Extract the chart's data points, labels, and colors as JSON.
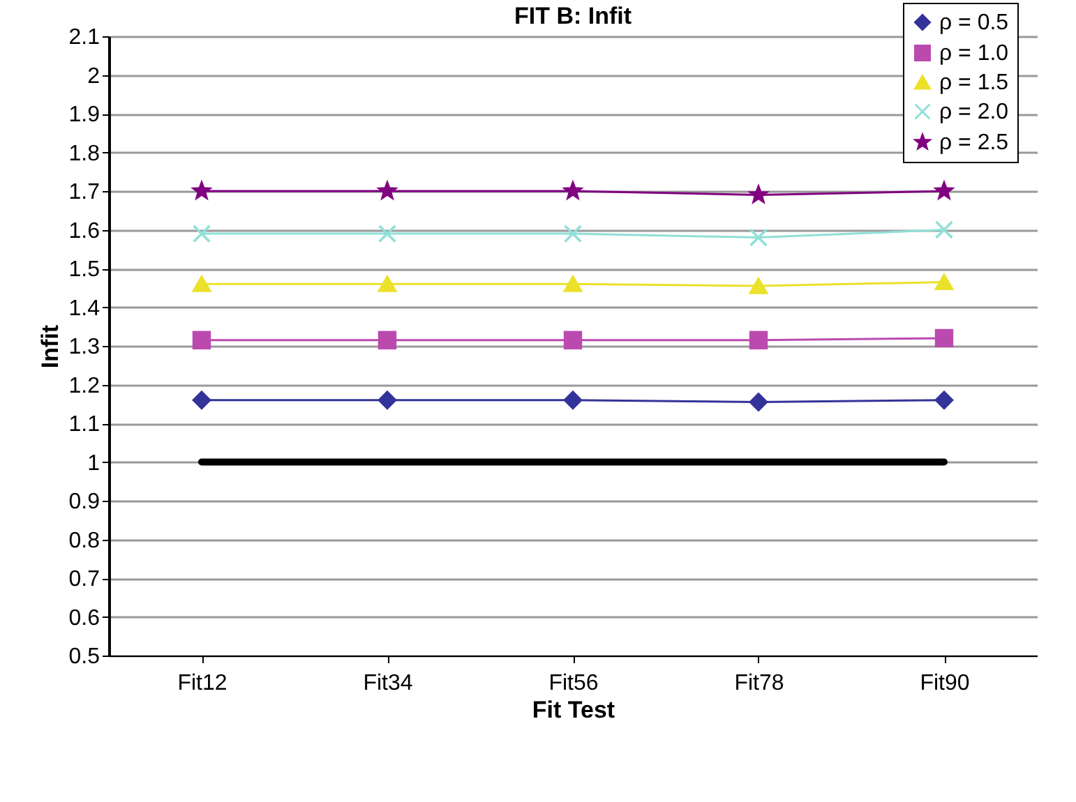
{
  "chart_data": {
    "type": "line",
    "title": "FIT B: Infit",
    "xlabel": "Fit Test",
    "ylabel": "Infit",
    "categories": [
      "Fit12",
      "Fit34",
      "Fit56",
      "Fit78",
      "Fit90"
    ],
    "series": [
      {
        "name": "ρ = 0.5",
        "color": "#333399",
        "marker": "diamond",
        "values": [
          1.16,
          1.16,
          1.16,
          1.155,
          1.16
        ]
      },
      {
        "name": "ρ = 1.0",
        "color": "#bb4aaf",
        "marker": "square",
        "values": [
          1.315,
          1.315,
          1.315,
          1.315,
          1.32
        ]
      },
      {
        "name": "ρ = 1.5",
        "color": "#ece12b",
        "marker": "triangle",
        "values": [
          1.46,
          1.46,
          1.46,
          1.455,
          1.465
        ]
      },
      {
        "name": "ρ = 2.0",
        "color": "#8fe0d8",
        "marker": "cross",
        "values": [
          1.59,
          1.59,
          1.59,
          1.58,
          1.6
        ]
      },
      {
        "name": "ρ = 2.5",
        "color": "#800080",
        "marker": "star",
        "values": [
          1.7,
          1.7,
          1.7,
          1.69,
          1.7
        ]
      },
      {
        "color": "#000000",
        "marker": "none",
        "values": [
          1,
          1,
          1,
          1,
          1
        ]
      }
    ],
    "ylim": [
      0.5,
      2.1
    ],
    "yticks": [
      0.5,
      0.6,
      0.7,
      0.8,
      0.9,
      1,
      1.1,
      1.2,
      1.3,
      1.4,
      1.5,
      1.6,
      1.7,
      1.8,
      1.9,
      2,
      2.1
    ],
    "grid": "y",
    "legend": "top right"
  }
}
